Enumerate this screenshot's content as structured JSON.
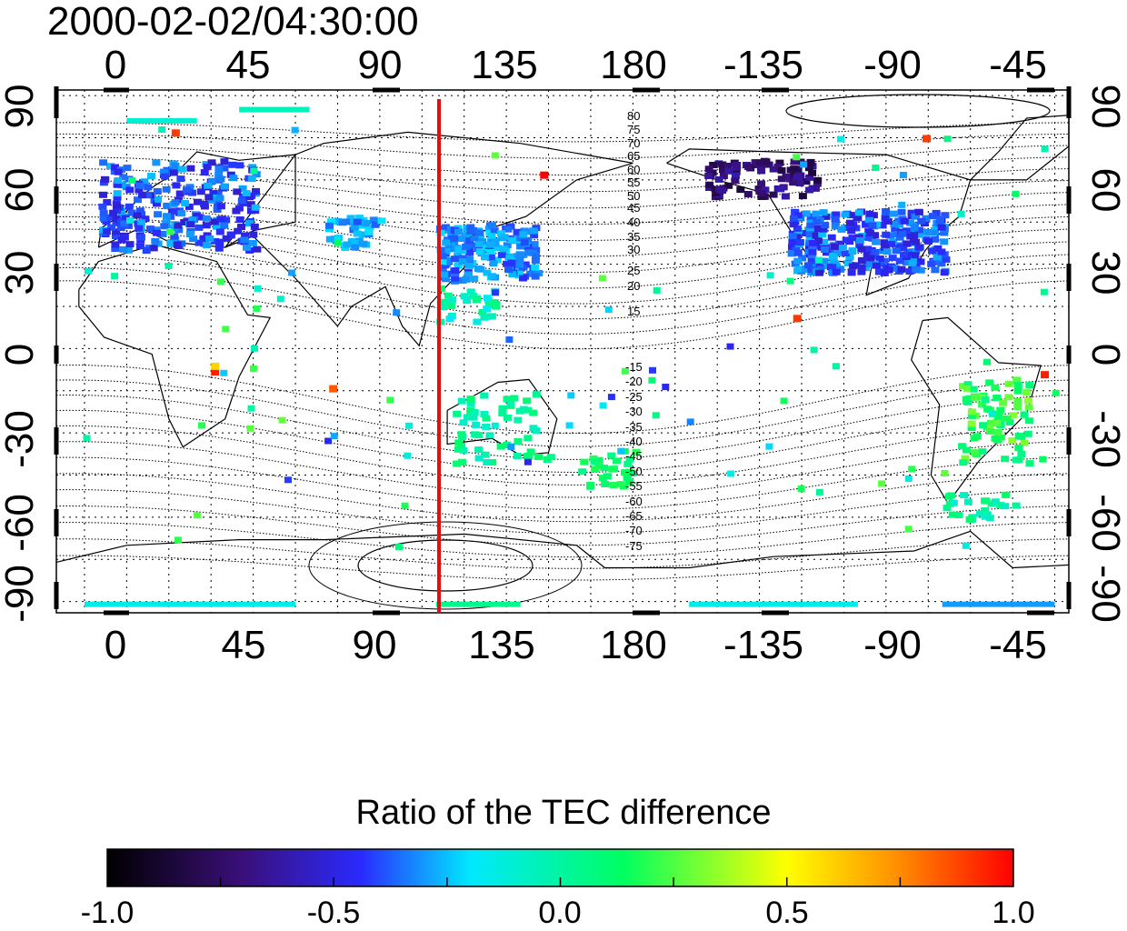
{
  "timestamp": "2000-02-02/04:30:00",
  "map": {
    "lon_ticks": [
      "0",
      "45",
      "90",
      "135",
      "180",
      "-135",
      "-90",
      "-45"
    ],
    "lat_ticks_left": [
      "90",
      "60",
      "30",
      "0",
      "-30",
      "-60",
      "-90"
    ],
    "lat_ticks_right": [
      "90",
      "60",
      "30",
      "0",
      "-30",
      "-60",
      "-90"
    ],
    "contour_labels_north": [
      "80",
      "75",
      "70",
      "65",
      "60",
      "55",
      "50",
      "45",
      "40",
      "35",
      "30",
      "25",
      "20",
      "15"
    ],
    "contour_labels_south": [
      "-15",
      "-20",
      "-25",
      "-30",
      "-35",
      "-40",
      "-45",
      "-50",
      "-55",
      "-60",
      "-65",
      "-70",
      "-75"
    ],
    "meridian_marker_color": "#e01010",
    "grid": "dotted",
    "projection": "equirectangular"
  },
  "colorbar": {
    "title": "Ratio of the TEC difference",
    "tick_labels": [
      "-1.0",
      "-0.5",
      "0.0",
      "0.5",
      "1.0"
    ],
    "range": [
      -1.0,
      1.0
    ],
    "colors": [
      "#000000",
      "#3a0f7a",
      "#2a2aff",
      "#00e8ff",
      "#00ff60",
      "#ffff00",
      "#ff9000",
      "#ff0000"
    ]
  }
}
